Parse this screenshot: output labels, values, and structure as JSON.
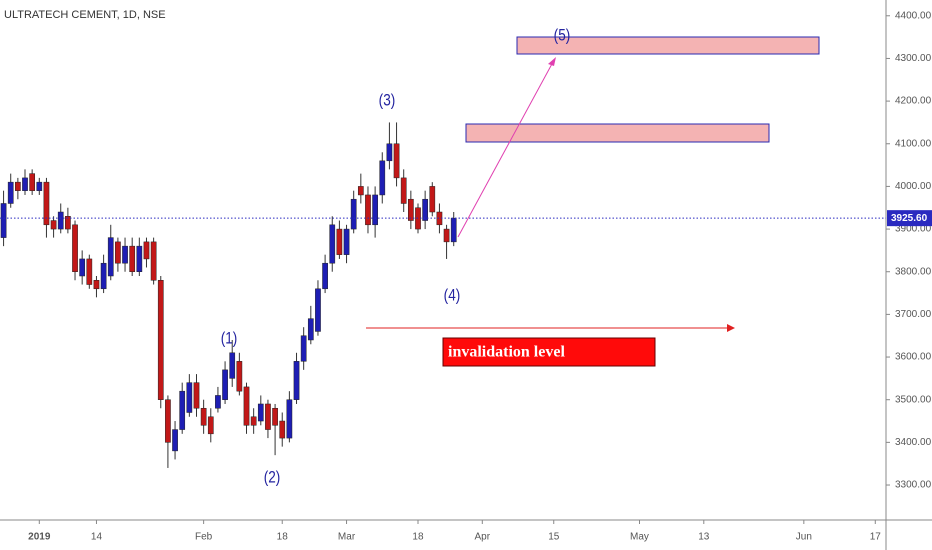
{
  "chart_data": {
    "type": "candlestick",
    "title": "ULTRATECH CEMENT, 1D, NSE",
    "categories": [
      null,
      null,
      null,
      null,
      null,
      "2019",
      null,
      null,
      null,
      null,
      null,
      null,
      null,
      "14",
      null,
      null,
      null,
      null,
      null,
      null,
      null,
      null,
      null,
      null,
      null,
      null,
      null,
      null,
      "Feb",
      null,
      null,
      null,
      null,
      null,
      null,
      null,
      null,
      null,
      null,
      "18",
      null,
      null,
      null,
      null,
      null,
      null,
      null,
      null,
      "Mar",
      null,
      null,
      null,
      null,
      null,
      null,
      null,
      null,
      null,
      "18",
      null,
      null,
      null,
      null,
      null,
      null,
      null,
      null,
      "Apr",
      null,
      null,
      null,
      null,
      null,
      null,
      null,
      null,
      null,
      "15",
      null,
      null,
      null,
      null,
      null,
      null,
      null,
      null,
      null,
      null,
      null,
      "May",
      null,
      null,
      null,
      null,
      null,
      null,
      null,
      null,
      "13",
      null,
      null,
      null,
      null,
      null,
      null,
      null,
      null,
      null,
      null,
      null,
      null,
      null,
      "Jun",
      null,
      null,
      null,
      null,
      null,
      null,
      null,
      null,
      null,
      "17",
      null
    ],
    "open": [
      3880,
      3960,
      4010,
      3990,
      4030,
      3990,
      4010,
      3920,
      3900,
      3930,
      3910,
      3790,
      3830,
      3780,
      3760,
      3790,
      3870,
      3820,
      3860,
      3800,
      3870,
      3870,
      3780,
      3500,
      3380,
      3430,
      3470,
      3540,
      3480,
      3460,
      3480,
      3500,
      3550,
      3590,
      3530,
      3460,
      3450,
      3490,
      3480,
      3450,
      3410,
      3500,
      3590,
      3640,
      3660,
      3760,
      3820,
      3900,
      3840,
      3900,
      4000,
      3980,
      3910,
      3980,
      4060,
      4100,
      4020,
      3970,
      3950,
      3920,
      4000,
      3940,
      3900,
      3870,
      null,
      null,
      null,
      null,
      null,
      null,
      null,
      null,
      null,
      null,
      null,
      null,
      null,
      null,
      null,
      null,
      null,
      null,
      null,
      null,
      null,
      null,
      null,
      null,
      null,
      null,
      null,
      null,
      null,
      null,
      null,
      null,
      null,
      null,
      null,
      null,
      null,
      null,
      null,
      null,
      null,
      null,
      null,
      null,
      null,
      null,
      null,
      null,
      null,
      null,
      null,
      null,
      null,
      null,
      null,
      null,
      null,
      null,
      null,
      null
    ],
    "high": [
      3990,
      4030,
      4020,
      4040,
      4040,
      4020,
      4020,
      3930,
      3960,
      3950,
      3920,
      3850,
      3840,
      3790,
      3840,
      3910,
      3880,
      3880,
      3880,
      3880,
      3880,
      3880,
      3790,
      3510,
      3450,
      3540,
      3560,
      3560,
      3500,
      3480,
      3530,
      3590,
      3640,
      3610,
      3540,
      3480,
      3510,
      3500,
      3490,
      3470,
      3520,
      3610,
      3670,
      3720,
      3780,
      3840,
      3930,
      3920,
      3910,
      3990,
      4030,
      4000,
      4000,
      4080,
      4150,
      4150,
      4040,
      3990,
      3960,
      3990,
      4010,
      3960,
      3910,
      3940,
      null,
      null,
      null,
      null,
      null,
      null,
      null,
      null,
      null,
      null,
      null,
      null,
      null,
      null,
      null,
      null,
      null,
      null,
      null,
      null,
      null,
      null,
      null,
      null,
      null,
      null,
      null,
      null,
      null,
      null,
      null,
      null,
      null,
      null,
      null,
      null,
      null,
      null,
      null,
      null,
      null,
      null,
      null,
      null,
      null,
      null,
      null,
      null,
      null,
      null,
      null,
      null,
      null,
      null,
      null,
      null,
      null,
      null,
      null,
      null
    ],
    "low": [
      3860,
      3950,
      3970,
      3980,
      3980,
      3980,
      3880,
      3880,
      3890,
      3890,
      3780,
      3770,
      3760,
      3740,
      3750,
      3780,
      3800,
      3800,
      3790,
      3790,
      3810,
      3770,
      3480,
      3340,
      3360,
      3420,
      3460,
      3460,
      3420,
      3400,
      3470,
      3490,
      3530,
      3510,
      3420,
      3420,
      3440,
      3410,
      3370,
      3390,
      3400,
      3490,
      3570,
      3630,
      3650,
      3750,
      3800,
      3830,
      3820,
      3890,
      3960,
      3890,
      3880,
      3960,
      4040,
      4000,
      3940,
      3900,
      3890,
      3900,
      3930,
      3890,
      3830,
      3860,
      null,
      null,
      null,
      null,
      null,
      null,
      null,
      null,
      null,
      null,
      null,
      null,
      null,
      null,
      null,
      null,
      null,
      null,
      null,
      null,
      null,
      null,
      null,
      null,
      null,
      null,
      null,
      null,
      null,
      null,
      null,
      null,
      null,
      null,
      null,
      null,
      null,
      null,
      null,
      null,
      null,
      null,
      null,
      null,
      null,
      null,
      null,
      null,
      null,
      null,
      null,
      null,
      null,
      null,
      null,
      null,
      null,
      null,
      null,
      null
    ],
    "close": [
      3960,
      4010,
      3990,
      4020,
      3990,
      4010,
      3910,
      3900,
      3940,
      3900,
      3800,
      3830,
      3770,
      3760,
      3820,
      3880,
      3820,
      3860,
      3800,
      3860,
      3830,
      3780,
      3500,
      3400,
      3430,
      3520,
      3540,
      3480,
      3440,
      3420,
      3510,
      3570,
      3610,
      3520,
      3440,
      3440,
      3490,
      3430,
      3440,
      3410,
      3500,
      3590,
      3650,
      3690,
      3760,
      3820,
      3910,
      3840,
      3900,
      3970,
      3980,
      3910,
      3980,
      4060,
      4100,
      4020,
      3960,
      3920,
      3900,
      3970,
      3940,
      3910,
      3870,
      3925.6,
      null,
      null,
      null,
      null,
      null,
      null,
      null,
      null,
      null,
      null,
      null,
      null,
      null,
      null,
      null,
      null,
      null,
      null,
      null,
      null,
      null,
      null,
      null,
      null,
      null,
      null,
      null,
      null,
      null,
      null,
      null,
      null,
      null,
      null,
      null,
      null,
      null,
      null,
      null,
      null,
      null,
      null,
      null,
      null,
      null,
      null,
      null,
      null,
      null,
      null,
      null,
      null,
      null,
      null,
      null,
      null,
      null,
      null,
      null,
      null
    ],
    "up_color": "#1e1eb4",
    "down_color": "#c21818",
    "ylim": [
      3218,
      4437
    ],
    "yticks": [
      {
        "value": 3300,
        "label": "3300.00"
      },
      {
        "value": 3400,
        "label": "3400.00"
      },
      {
        "value": 3500,
        "label": "3500.00"
      },
      {
        "value": 3600,
        "label": "3600.00"
      },
      {
        "value": 3700,
        "label": "3700.00"
      },
      {
        "value": 3800,
        "label": "3800.00"
      },
      {
        "value": 3900,
        "label": "3900.00"
      },
      {
        "value": 4000,
        "label": "4000.00"
      },
      {
        "value": 4100,
        "label": "4100.00"
      },
      {
        "value": 4200,
        "label": "4200.00"
      },
      {
        "value": 4300,
        "label": "4300.00"
      },
      {
        "value": 4400,
        "label": "4400.00"
      }
    ],
    "last_price": {
      "value": 3925.6,
      "label": "3925.60"
    },
    "annotations": [
      "(1)",
      "(2)",
      "(3)",
      "(4)",
      "(5)",
      "invalidation level"
    ],
    "grid": false
  }
}
